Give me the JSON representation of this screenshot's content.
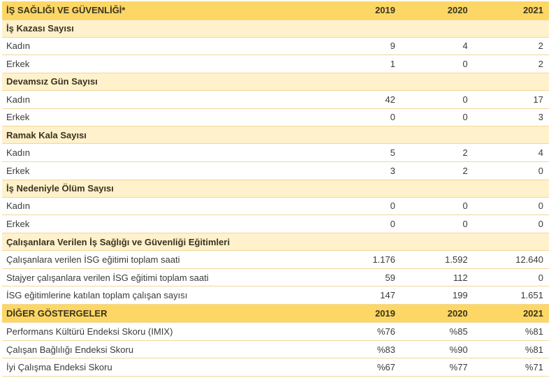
{
  "sections": [
    {
      "type": "header",
      "title": "İŞ SAĞLIĞI VE GÜVENLİĞİ*",
      "years": [
        "2019",
        "2020",
        "2021"
      ],
      "groups": [
        {
          "title": "İş Kazası Sayısı",
          "rows": [
            {
              "label": "Kadın",
              "values": [
                "9",
                "4",
                "2"
              ]
            },
            {
              "label": "Erkek",
              "values": [
                "1",
                "0",
                "2"
              ]
            }
          ]
        },
        {
          "title": "Devamsız Gün Sayısı",
          "rows": [
            {
              "label": "Kadın",
              "values": [
                "42",
                "0",
                "17"
              ]
            },
            {
              "label": "Erkek",
              "values": [
                "0",
                "0",
                "3"
              ]
            }
          ]
        },
        {
          "title": "Ramak Kala Sayısı",
          "rows": [
            {
              "label": "Kadın",
              "values": [
                "5",
                "2",
                "4"
              ]
            },
            {
              "label": "Erkek",
              "values": [
                "3",
                "2",
                "0"
              ]
            }
          ]
        },
        {
          "title": "İş Nedeniyle Ölüm Sayısı",
          "rows": [
            {
              "label": "Kadın",
              "values": [
                "0",
                "0",
                "0"
              ]
            },
            {
              "label": "Erkek",
              "values": [
                "0",
                "0",
                "0"
              ]
            }
          ]
        },
        {
          "title": "Çalışanlara Verilen İş Sağlığı ve Güvenliği Eğitimleri",
          "rows": [
            {
              "label": "Çalışanlara verilen İSG eğitimi toplam saati",
              "values": [
                "1.176",
                "1.592",
                "12.640"
              ]
            },
            {
              "label": "Stajyer çalışanlara verilen İSG eğitimi toplam saati",
              "values": [
                "59",
                "112",
                "0"
              ]
            },
            {
              "label": "İSG eğitimlerine katılan toplam çalışan sayısı",
              "values": [
                "147",
                "199",
                "1.651"
              ]
            }
          ]
        }
      ]
    },
    {
      "type": "header",
      "title": "DİĞER GÖSTERGELER",
      "years": [
        "2019",
        "2020",
        "2021"
      ],
      "groups": [
        {
          "title": null,
          "rows": [
            {
              "label": "Performans Kültürü Endeksi Skoru (IMIX)",
              "values": [
                "%76",
                "%85",
                "%81"
              ]
            },
            {
              "label": "Çalışan Bağlılığı Endeksi Skoru",
              "values": [
                "%83",
                "%90",
                "%81"
              ]
            },
            {
              "label": "İyi Çalışma Endeksi Skoru",
              "values": [
                "%67",
                "%77",
                "%71"
              ]
            }
          ]
        }
      ]
    }
  ],
  "colors": {
    "header_bg": "#fcd766",
    "subheader_bg": "#fff1cb",
    "row_bg": "#ffffff",
    "divider": "#f1d89a"
  }
}
